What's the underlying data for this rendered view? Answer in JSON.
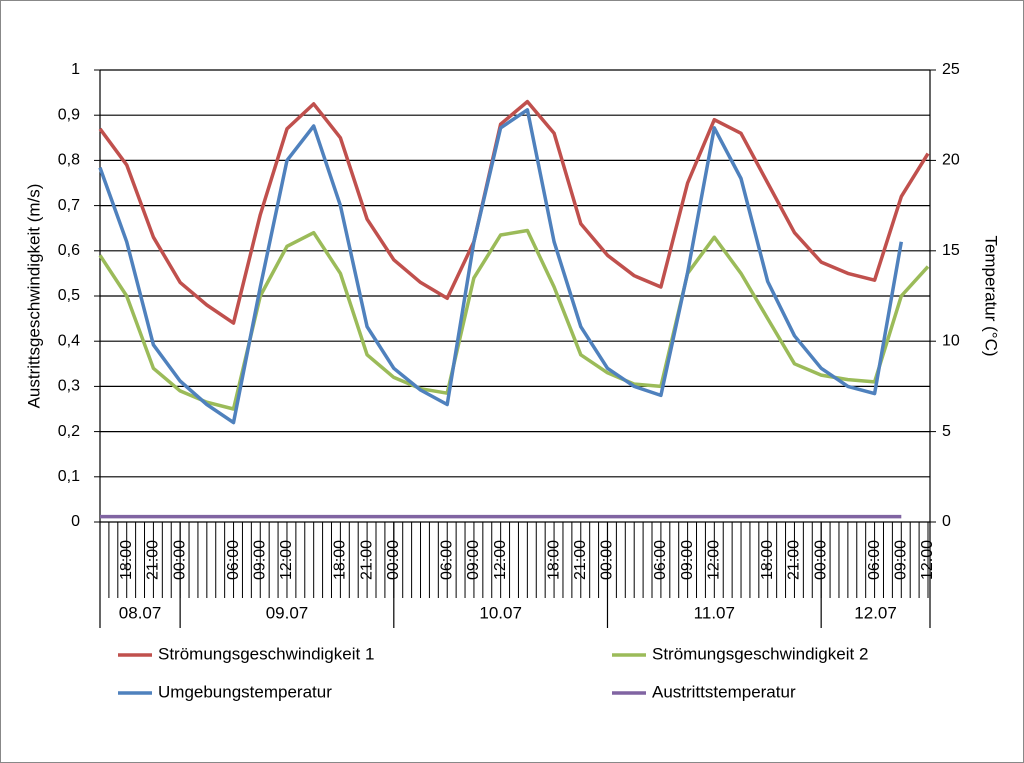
{
  "chart_data": {
    "type": "line",
    "y_label": "Austrittsgeschwindigkeit (m/s)",
    "y2_label": "Temperatur (°C)",
    "categories": [
      null,
      "18:00",
      "21:00",
      "00:00",
      null,
      "06:00",
      "09:00",
      "12:00",
      null,
      "18:00",
      "21:00",
      "00:00",
      null,
      "06:00",
      "09:00",
      "12:00",
      null,
      "18:00",
      "21:00",
      "00:00",
      null,
      "06:00",
      "09:00",
      "12:00",
      null,
      "18:00",
      "21:00",
      "00:00",
      null,
      "06:00",
      "09:00",
      "12:00"
    ],
    "date_labels": [
      "08.07",
      "09.07",
      "10.07",
      "11.07",
      "12.07"
    ],
    "ylim": [
      0,
      1
    ],
    "yticks": [
      0,
      {
        "value": 0.1,
        "label": "0,1"
      },
      {
        "value": 0.2,
        "label": "0,2"
      },
      {
        "value": 0.3,
        "label": "0,3"
      },
      {
        "value": 0.4,
        "label": "0,4"
      },
      {
        "value": 0.5,
        "label": "0,5"
      },
      {
        "value": 0.6,
        "label": "0,6"
      },
      {
        "value": 0.7,
        "label": "0,7"
      },
      {
        "value": 0.8,
        "label": "0,8"
      },
      {
        "value": 0.9,
        "label": "0,9"
      },
      1
    ],
    "y2lim": [
      0,
      25
    ],
    "y2ticks": [
      0,
      5,
      10,
      15,
      20,
      25
    ],
    "grid": true,
    "legend": "bottom",
    "series": [
      {
        "name": "Strömungsgeschwindigkeit 1",
        "color": "#c0504d",
        "values": [
          0.87,
          0.79,
          0.63,
          0.53,
          0.48,
          0.44,
          0.68,
          0.87,
          0.925,
          0.85,
          0.67,
          0.58,
          0.53,
          0.495,
          0.62,
          0.88,
          0.93,
          0.86,
          0.66,
          0.59,
          0.545,
          0.52,
          0.75,
          0.89,
          0.86,
          0.75,
          0.64,
          0.575,
          0.55,
          0.535,
          0.72,
          0.815
        ]
      },
      {
        "name": "Strömungsgeschwindigkeit 2",
        "color": "#9bbb59",
        "values": [
          0.59,
          0.5,
          0.34,
          0.29,
          0.265,
          0.25,
          0.5,
          0.61,
          0.64,
          0.55,
          0.37,
          0.32,
          0.295,
          0.285,
          0.54,
          0.635,
          0.645,
          0.52,
          0.37,
          0.33,
          0.305,
          0.3,
          0.55,
          0.63,
          0.55,
          0.45,
          0.35,
          0.325,
          0.315,
          0.31,
          0.5,
          0.565
        ]
      },
      {
        "name": "Umgebungstemperatur",
        "color": "#4f81bd",
        "axis": "y2",
        "values": [
          19.6,
          15.5,
          9.8,
          7.8,
          6.5,
          5.5,
          13,
          20,
          21.9,
          17.5,
          10.8,
          8.5,
          7.3,
          6.5,
          15.5,
          21.8,
          22.8,
          15.5,
          10.8,
          8.5,
          7.5,
          7,
          13.8,
          21.8,
          19,
          13.3,
          10.3,
          8.5,
          7.5,
          7.1,
          15.5,
          null
        ]
      },
      {
        "name": "Austrittstemperatur",
        "color": "#8064a2",
        "axis": "y2",
        "values": [
          0.3,
          0.3,
          0.3,
          0.3,
          0.3,
          0.3,
          0.3,
          0.3,
          0.3,
          0.3,
          0.3,
          0.3,
          0.3,
          0.3,
          0.3,
          0.3,
          0.3,
          0.3,
          0.3,
          0.3,
          0.3,
          0.3,
          0.3,
          0.3,
          0.3,
          0.3,
          0.3,
          0.3,
          0.3,
          0.3,
          0.3,
          null
        ]
      }
    ]
  }
}
